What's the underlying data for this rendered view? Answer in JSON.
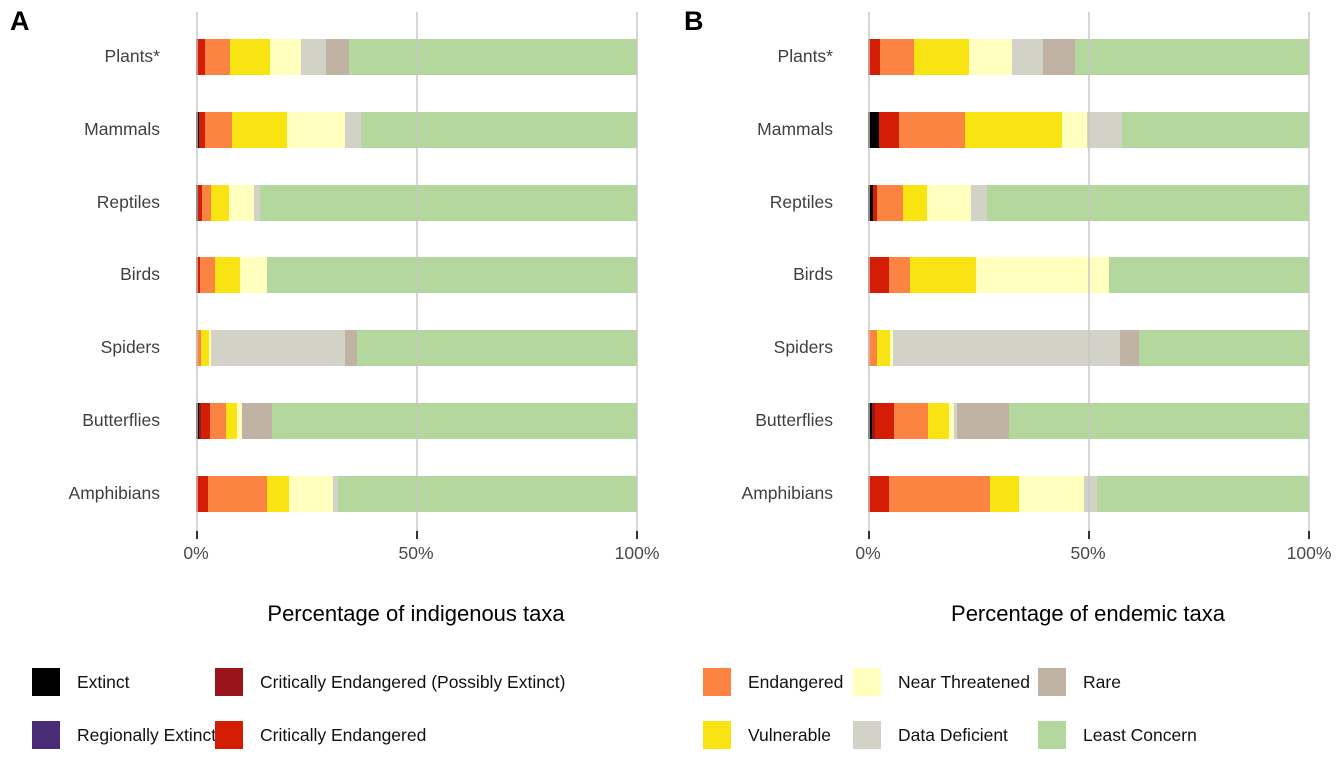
{
  "colors": {
    "Extinct": "#000000",
    "Regionally Extinct": "#4a2c77",
    "Critically Endangered (Possibly Extinct)": "#99151a",
    "Critically Endangered": "#d41d05",
    "Endangered": "#fb8442",
    "Vulnerable": "#f8e412",
    "Near Threatened": "#ffffbe",
    "Data Deficient": "#d2d2c6",
    "Rare": "#c0b3a3",
    "Least Concern": "#b3d79c"
  },
  "legend": {
    "items": [
      {
        "label": "Extinct"
      },
      {
        "label": "Regionally Extinct"
      },
      {
        "label": "Critically Endangered (Possibly Extinct)"
      },
      {
        "label": "Critically Endangered"
      },
      {
        "label": "Endangered"
      },
      {
        "label": "Vulnerable"
      },
      {
        "label": "Near Threatened"
      },
      {
        "label": "Data Deficient"
      },
      {
        "label": "Rare"
      },
      {
        "label": "Least Concern"
      }
    ]
  },
  "chart_data": [
    {
      "type": "bar",
      "stacked": true,
      "orientation": "horizontal",
      "panel_label": "A",
      "xlabel": "Percentage of indigenous taxa",
      "x_ticks": [
        "0%",
        "50%",
        "100%"
      ],
      "xlim": [
        0,
        100
      ],
      "grid": "vertical at 0, 50, 100",
      "categories": [
        "Plants*",
        "Mammals",
        "Reptiles",
        "Birds",
        "Spiders",
        "Butterflies",
        "Amphibians"
      ],
      "series": [
        {
          "name": "Extinct",
          "values": [
            0,
            0.6,
            0.4,
            0,
            0,
            0.6,
            0
          ]
        },
        {
          "name": "Regionally Extinct",
          "values": [
            0,
            0,
            0,
            0,
            0,
            0,
            0
          ]
        },
        {
          "name": "Critically Endangered (Possibly Extinct)",
          "values": [
            0,
            0,
            0,
            0,
            0,
            0.5,
            0
          ]
        },
        {
          "name": "Critically Endangered",
          "values": [
            2.1,
            1.4,
            1.0,
            1.0,
            0,
            2.1,
            2.7
          ]
        },
        {
          "name": "Endangered",
          "values": [
            5.5,
            6.2,
            2.0,
            3.3,
            1.1,
            3.5,
            13.5
          ]
        },
        {
          "name": "Vulnerable",
          "values": [
            9.1,
            12.5,
            4.0,
            5.7,
            1.8,
            2.7,
            4.9
          ]
        },
        {
          "name": "Near Threatened",
          "values": [
            7.1,
            13.0,
            5.8,
            6.0,
            0.4,
            1.0,
            9.9
          ]
        },
        {
          "name": "Data Deficient",
          "values": [
            5.7,
            3.7,
            1.4,
            0,
            30.6,
            0,
            1.3
          ]
        },
        {
          "name": "Rare",
          "values": [
            5.2,
            0,
            0,
            0,
            2.7,
            6.9,
            0
          ]
        },
        {
          "name": "Least Concern",
          "values": [
            65.3,
            62.6,
            85.4,
            84.0,
            63.4,
            82.7,
            67.7
          ]
        }
      ]
    },
    {
      "type": "bar",
      "stacked": true,
      "orientation": "horizontal",
      "panel_label": "B",
      "xlabel": "Percentage of endemic taxa",
      "x_ticks": [
        "0%",
        "50%",
        "100%"
      ],
      "xlim": [
        0,
        100
      ],
      "grid": "vertical at 0, 50, 100",
      "categories": [
        "Plants*",
        "Mammals",
        "Reptiles",
        "Birds",
        "Spiders",
        "Butterflies",
        "Amphibians"
      ],
      "series": [
        {
          "name": "Extinct",
          "values": [
            0,
            2.5,
            1.1,
            0,
            0,
            0.8,
            0
          ]
        },
        {
          "name": "Regionally Extinct",
          "values": [
            0,
            0,
            0,
            0,
            0,
            0,
            0
          ]
        },
        {
          "name": "Critically Endangered (Possibly Extinct)",
          "values": [
            0,
            0,
            0,
            0,
            0,
            0.7,
            0
          ]
        },
        {
          "name": "Critically Endangered",
          "values": [
            2.8,
            4.5,
            0.9,
            4.8,
            0,
            4.4,
            4.8
          ]
        },
        {
          "name": "Endangered",
          "values": [
            7.6,
            15.1,
            6.0,
            4.8,
            2.1,
            7.6,
            22.9
          ]
        },
        {
          "name": "Vulnerable",
          "values": [
            12.5,
            22.0,
            5.3,
            15.0,
            2.8,
            4.9,
            6.6
          ]
        },
        {
          "name": "Near Threatened",
          "values": [
            9.8,
            5.5,
            10.0,
            30.0,
            0.8,
            1.1,
            14.7
          ]
        },
        {
          "name": "Data Deficient",
          "values": [
            7.0,
            8.1,
            3.8,
            0,
            51.5,
            0.7,
            2.9
          ]
        },
        {
          "name": "Rare",
          "values": [
            7.2,
            0,
            0,
            0,
            4.2,
            11.8,
            0
          ]
        },
        {
          "name": "Least Concern",
          "values": [
            53.1,
            42.3,
            72.9,
            45.4,
            38.6,
            68.0,
            48.1
          ]
        }
      ]
    }
  ]
}
